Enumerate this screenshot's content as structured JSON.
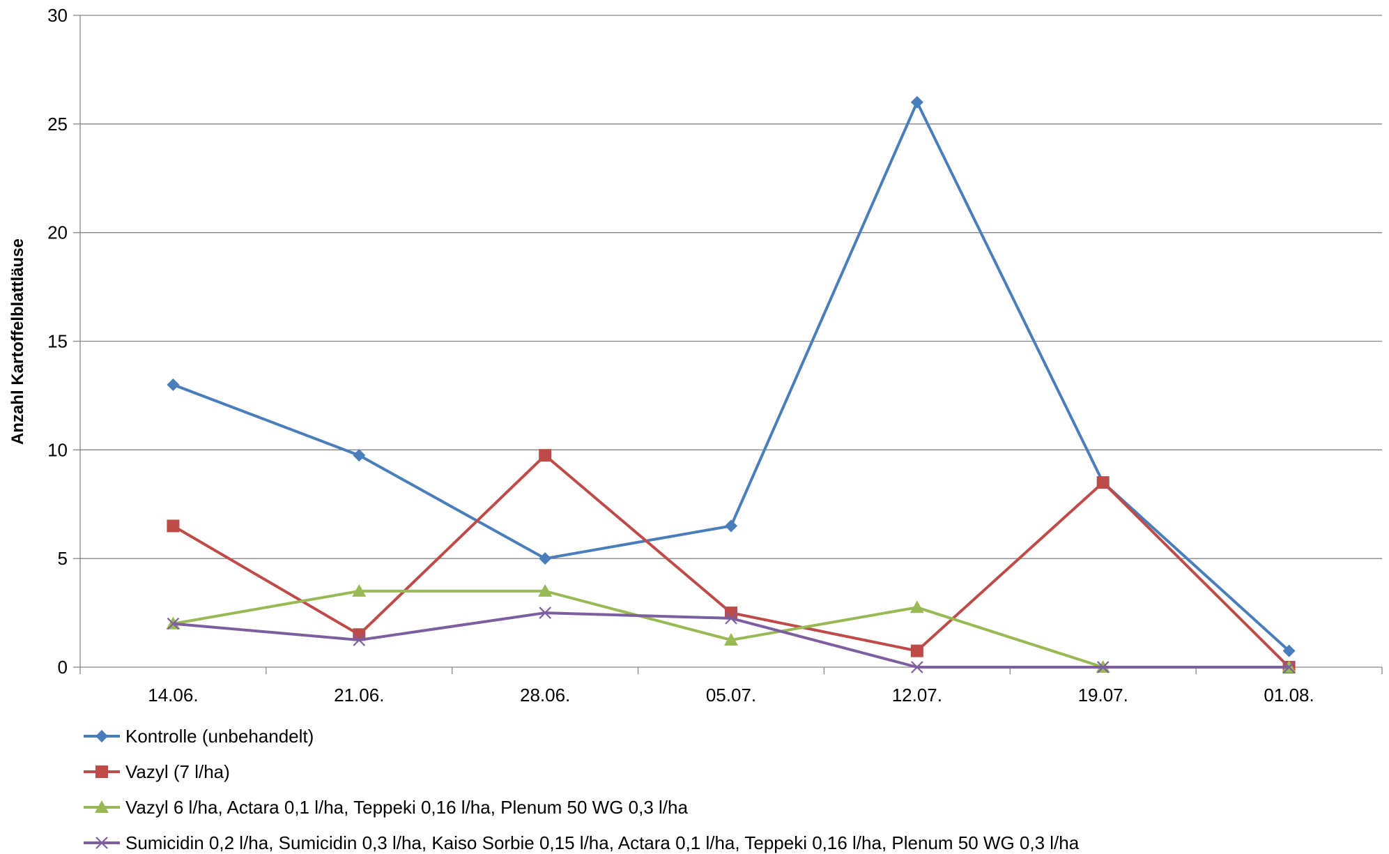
{
  "chart_data": {
    "type": "line",
    "title": "",
    "xlabel": "",
    "ylabel": "Anzahl Kartoffelblattläuse",
    "categories": [
      "14.06.",
      "21.06.",
      "28.06.",
      "05.07.",
      "12.07.",
      "19.07.",
      "01.08."
    ],
    "ylim": [
      0,
      30
    ],
    "yticks": [
      "0",
      "5",
      "10",
      "15",
      "20",
      "25",
      "30"
    ],
    "grid": true,
    "legend_position": "bottom",
    "series": [
      {
        "name": "Kontrolle (unbehandelt)",
        "color": "#4a7ebb",
        "marker": "diamond",
        "values": [
          13,
          9.75,
          5,
          6.5,
          26,
          8.5,
          0.75
        ]
      },
      {
        "name": "Vazyl (7 l/ha)",
        "color": "#be4b48",
        "marker": "square",
        "values": [
          6.5,
          1.5,
          9.75,
          2.5,
          0.75,
          8.5,
          0
        ]
      },
      {
        "name": "Vazyl 6 l/ha, Actara 0,1 l/ha, Teppeki 0,16 l/ha, Plenum 50 WG 0,3 l/ha",
        "color": "#98b954",
        "marker": "triangle",
        "values": [
          2,
          3.5,
          3.5,
          1.25,
          2.75,
          0,
          0
        ]
      },
      {
        "name": "Sumicidin 0,2 l/ha, Sumicidin 0,3 l/ha, Kaiso Sorbie 0,15 l/ha, Actara 0,1 l/ha, Teppeki 0,16 l/ha, Plenum 50 WG 0,3 l/ha",
        "color": "#7d5fa0",
        "marker": "x",
        "values": [
          2,
          1.25,
          2.5,
          2.25,
          0,
          0,
          0
        ]
      }
    ]
  }
}
